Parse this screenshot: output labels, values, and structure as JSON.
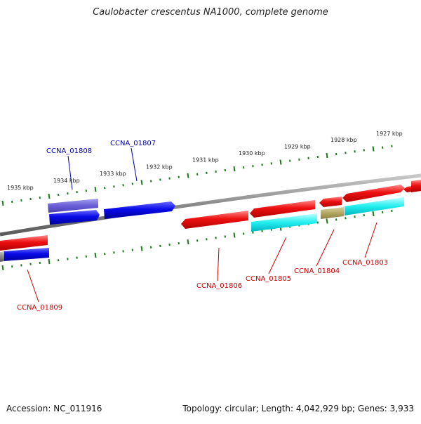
{
  "title": "Caulobacter crescentus NA1000, complete genome",
  "footer": {
    "accession": "Accession: NC_011916",
    "summary": "Topology: circular; Length: 4,042,929 bp; Genes: 3,933"
  },
  "colors": {
    "forward_label": "#0000aa",
    "reverse_label": "#cc0000",
    "tick": "#1a7a1a",
    "backbone": "#888888"
  },
  "ticks": [
    {
      "label": "1935 kbp"
    },
    {
      "label": "1934 kbp"
    },
    {
      "label": "1933 kbp"
    },
    {
      "label": "1932 kbp"
    },
    {
      "label": "1931 kbp"
    },
    {
      "label": "1930 kbp"
    },
    {
      "label": "1929 kbp"
    },
    {
      "label": "1928 kbp"
    },
    {
      "label": "1927 kbp"
    }
  ],
  "genes": [
    {
      "label": "CCNA_01808",
      "strand": "forward"
    },
    {
      "label": "CCNA_01807",
      "strand": "forward"
    },
    {
      "label": "CCNA_01809",
      "strand": "reverse"
    },
    {
      "label": "CCNA_01806",
      "strand": "reverse"
    },
    {
      "label": "CCNA_01805",
      "strand": "reverse"
    },
    {
      "label": "CCNA_01804",
      "strand": "reverse"
    },
    {
      "label": "CCNA_01803",
      "strand": "reverse"
    }
  ]
}
